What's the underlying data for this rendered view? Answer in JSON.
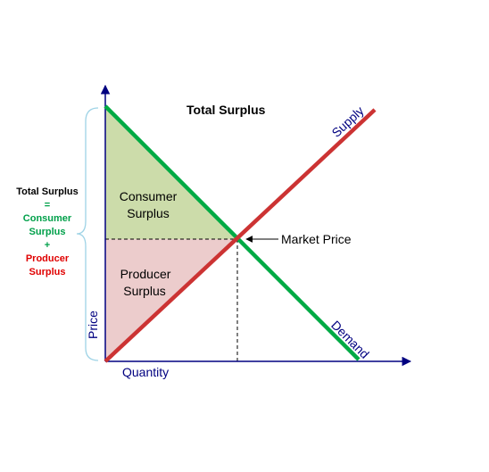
{
  "title": "Total Surplus",
  "labels": {
    "supply": "Supply",
    "demand": "Demand",
    "market_price": "Market Price",
    "consumer_surplus_line1": "Consumer",
    "consumer_surplus_line2": "Surplus",
    "producer_surplus_line1": "Producer",
    "producer_surplus_line2": "Surplus",
    "x_axis": "Quantity",
    "y_axis": "Price"
  },
  "equation": {
    "line1": "Total Surplus",
    "eq": "=",
    "consumer_line1": "Consumer",
    "consumer_line2": "Surplus",
    "plus": "+",
    "producer_line1": "Producer",
    "producer_line2": "Surplus"
  },
  "colors": {
    "supply_line": "#cc3333",
    "demand_line": "#00aa44",
    "consumer_fill": "#ccdcaa",
    "producer_fill": "#eccccc",
    "axis": "#000080",
    "axis_label": "#000080",
    "brace": "#9ed3e6",
    "consumer_text": "#00a04a",
    "producer_text": "#e00000",
    "equation_text": "#000000"
  }
}
